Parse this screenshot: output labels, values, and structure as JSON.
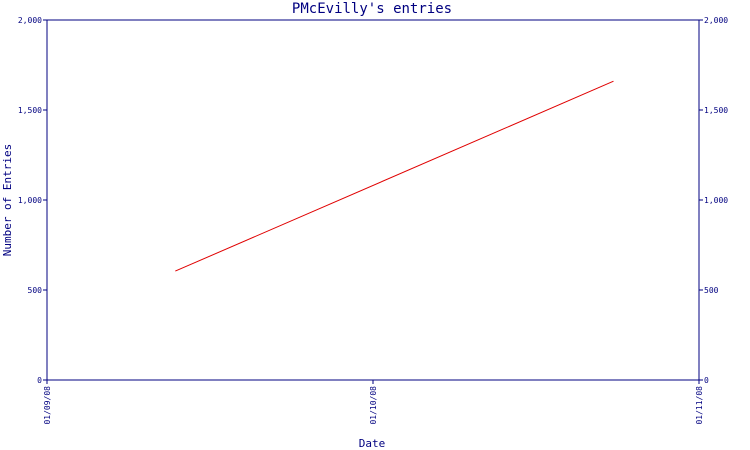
{
  "chart_data": {
    "type": "line",
    "title": "PMcEvilly's entries",
    "xlabel": "Date",
    "ylabel": "Number of Entries",
    "x_ticks": [
      "01/09/08",
      "01/10/08",
      "01/11/08"
    ],
    "xlim": [
      "2008-09-01",
      "2008-11-01"
    ],
    "y_ticks": [
      0,
      500,
      1000,
      1500,
      2000
    ],
    "y_tick_labels": [
      "0",
      "500",
      "1,000",
      "1,500",
      "2,000"
    ],
    "ylim": [
      0,
      2000
    ],
    "grid": false,
    "series": [
      {
        "color": "#e00000",
        "x": [
          "2008-09-13",
          "2008-10-24"
        ],
        "y": [
          605,
          1660
        ]
      }
    ]
  }
}
